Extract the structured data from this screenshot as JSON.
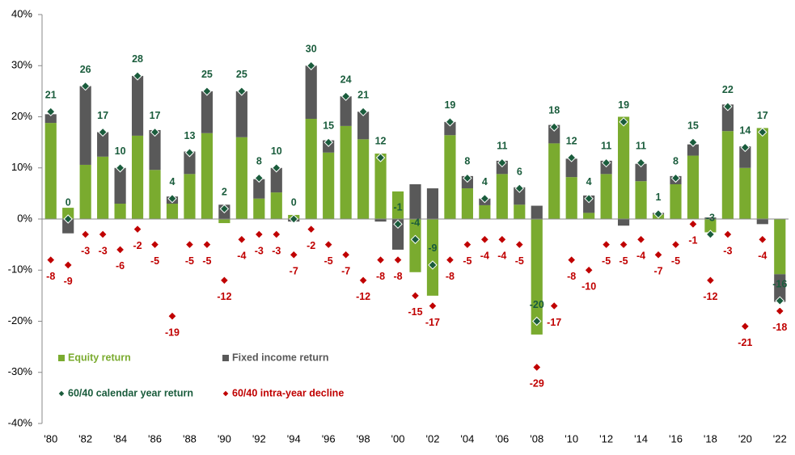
{
  "chart_data": {
    "type": "bar",
    "categories": [
      "'80",
      null,
      "'82",
      null,
      "'84",
      null,
      "'86",
      null,
      "'88",
      null,
      "'90",
      null,
      "'92",
      null,
      "'94",
      null,
      "'96",
      null,
      "'98",
      null,
      "'00",
      null,
      "'02",
      null,
      "'04",
      null,
      "'06",
      null,
      "'08",
      null,
      "'10",
      null,
      "'12",
      null,
      "'14",
      null,
      "'16",
      null,
      "'18",
      null,
      "'20",
      null,
      "'22"
    ],
    "series": [
      {
        "name": "Equity return",
        "color": "#7aab2f",
        "stacked": true,
        "values": [
          18.8,
          2.2,
          10.6,
          12.2,
          3,
          16.3,
          9.6,
          3,
          8.8,
          16.8,
          -0.8,
          16,
          4,
          5.2,
          0.8,
          19.6,
          13,
          18.2,
          15.6,
          12.8,
          5.4,
          -10.4,
          -15,
          16.4,
          6,
          2.7,
          8.8,
          2.8,
          -22.6,
          14.8,
          8.2,
          1.2,
          8.8,
          20,
          7.4,
          0.9,
          6.8,
          12.4,
          -2.6,
          17.2,
          10,
          17.8,
          -10.8
        ]
      },
      {
        "name": "Fixed income return",
        "color": "#595959",
        "stacked": true,
        "values": [
          1.7,
          -2.8,
          15.4,
          4.8,
          7,
          11.7,
          7.8,
          1.4,
          4.4,
          8.2,
          2.8,
          9,
          3.8,
          4.8,
          -0.5,
          10.4,
          2.4,
          5.8,
          5.4,
          -0.5,
          -6,
          6.8,
          6,
          2.6,
          2.4,
          1.3,
          2.6,
          3.4,
          2.6,
          3.6,
          3.6,
          3.4,
          2.6,
          -1.3,
          3.4,
          0.3,
          1.6,
          2.2,
          0.3,
          5.2,
          4.2,
          -1,
          -5.4
        ]
      },
      {
        "name": "60/40 calendar year return",
        "color": "#1a5c3c",
        "marker": "diamond",
        "label_position": "above",
        "values": [
          21,
          0,
          26,
          17,
          10,
          28,
          17,
          4,
          13,
          25,
          2,
          25,
          8,
          10,
          0,
          30,
          15,
          24,
          21,
          12,
          -1,
          -4,
          -9,
          19,
          8,
          4,
          11,
          6,
          -20,
          18,
          12,
          4,
          11,
          19,
          11,
          1,
          8,
          15,
          -3,
          22,
          14,
          17,
          -16
        ]
      },
      {
        "name": "60/40 intra-year decline",
        "color": "#c00000",
        "marker": "diamond",
        "label_position": "below",
        "values": [
          -8,
          -9,
          -3,
          -3,
          -6,
          -2,
          -5,
          -19,
          -5,
          -5,
          -12,
          -4,
          -3,
          -3,
          -7,
          -2,
          -5,
          -7,
          -12,
          -8,
          -8,
          -15,
          -17,
          -8,
          -5,
          -4,
          -4,
          -5,
          -29,
          -17,
          -8,
          -10,
          -5,
          -5,
          -4,
          -7,
          -5,
          -1,
          -12,
          -3,
          -21,
          -4,
          -18
        ]
      }
    ],
    "ylim": [
      -40,
      40
    ],
    "yticks": [
      {
        "value": -40,
        "label": "-40%"
      },
      {
        "value": -30,
        "label": "-30%"
      },
      {
        "value": -20,
        "label": "-20%"
      },
      {
        "value": -10,
        "label": "-10%"
      },
      {
        "value": 0,
        "label": "0%"
      },
      {
        "value": 10,
        "label": "10%"
      },
      {
        "value": 20,
        "label": "20%"
      },
      {
        "value": 30,
        "label": "30%"
      },
      {
        "value": 40,
        "label": "40%"
      }
    ],
    "grid": false
  }
}
